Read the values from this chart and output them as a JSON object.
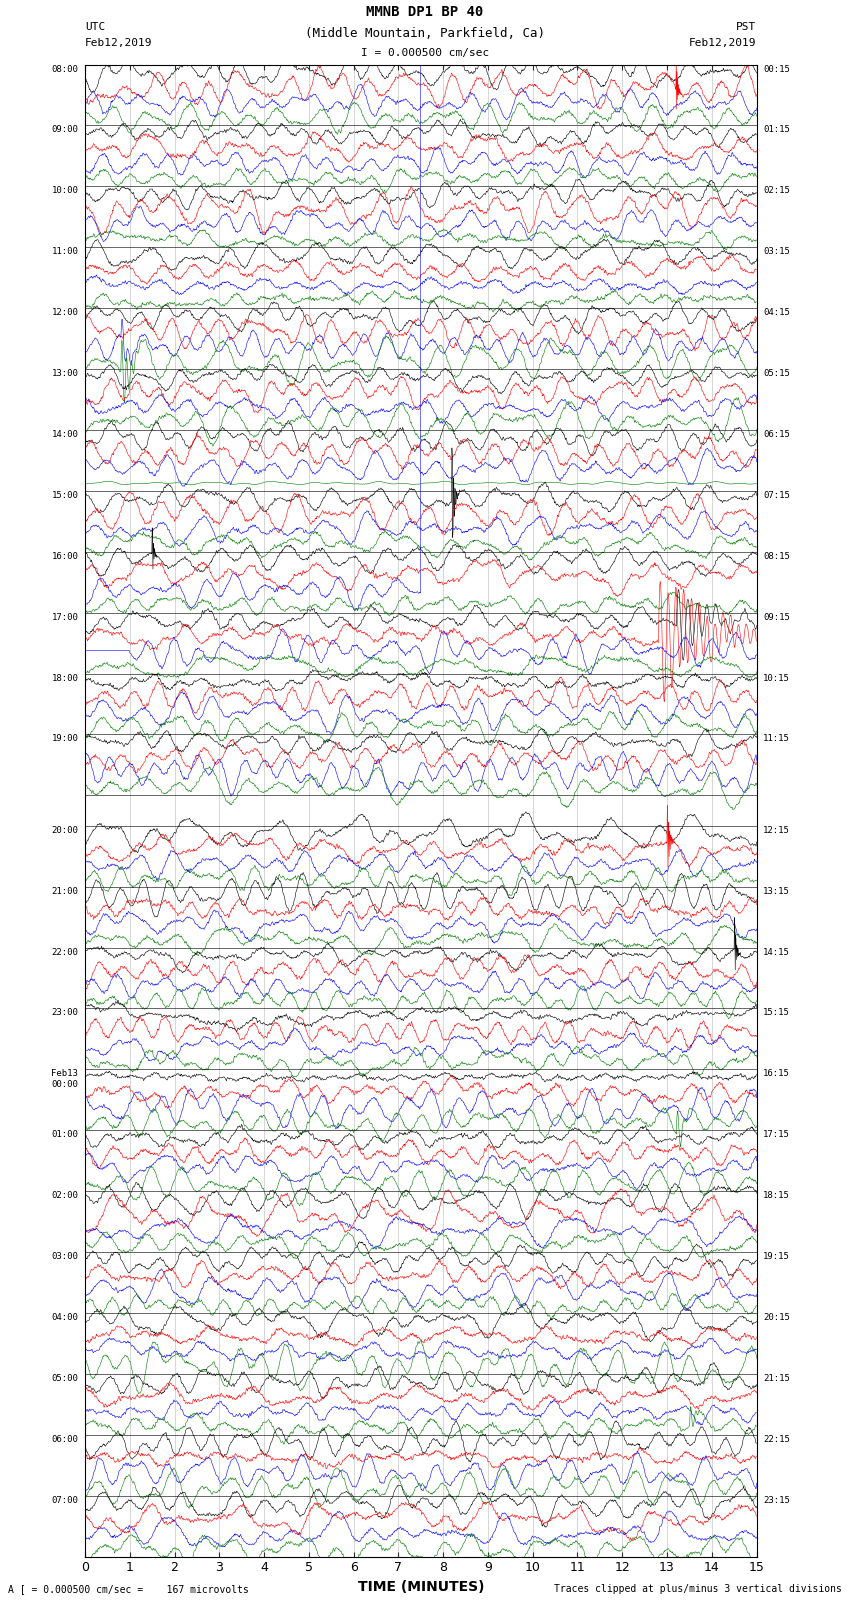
{
  "title_line1": "MMNB DP1 BP 40",
  "title_line2": "(Middle Mountain, Parkfield, Ca)",
  "scale_symbol": "I = 0.000500 cm/sec",
  "left_header_line1": "UTC",
  "left_header_line2": "Feb12,2019",
  "right_header_line1": "PST",
  "right_header_line2": "Feb12,2019",
  "xlabel": "TIME (MINUTES)",
  "bottom_left": "A [ = 0.000500 cm/sec =    167 microvolts",
  "bottom_right": "Traces clipped at plus/minus 3 vertical divisions",
  "xmin": 0,
  "xmax": 15,
  "xticks": [
    0,
    1,
    2,
    3,
    4,
    5,
    6,
    7,
    8,
    9,
    10,
    11,
    12,
    13,
    14,
    15
  ],
  "trace_colors": [
    "black",
    "red",
    "blue",
    "green"
  ],
  "bg_color": "white",
  "rows": [
    {
      "utc": "08:00",
      "pst": "00:15",
      "gap": false
    },
    {
      "utc": "09:00",
      "pst": "01:15",
      "gap": false
    },
    {
      "utc": "10:00",
      "pst": "02:15",
      "gap": false
    },
    {
      "utc": "11:00",
      "pst": "03:15",
      "gap": false
    },
    {
      "utc": "12:00",
      "pst": "04:15",
      "gap": false
    },
    {
      "utc": "13:00",
      "pst": "05:15",
      "gap": false
    },
    {
      "utc": "14:00",
      "pst": "06:15",
      "gap": false
    },
    {
      "utc": "15:00",
      "pst": "07:15",
      "gap": false
    },
    {
      "utc": "16:00",
      "pst": "08:15",
      "gap": false
    },
    {
      "utc": "17:00",
      "pst": "09:15",
      "gap": false
    },
    {
      "utc": "18:00",
      "pst": "10:15",
      "gap": false
    },
    {
      "utc": "19:00",
      "pst": "11:15",
      "gap": false
    },
    {
      "utc": "",
      "pst": "",
      "gap": true
    },
    {
      "utc": "20:00",
      "pst": "12:15",
      "gap": false
    },
    {
      "utc": "21:00",
      "pst": "13:15",
      "gap": false
    },
    {
      "utc": "22:00",
      "pst": "14:15",
      "gap": false
    },
    {
      "utc": "23:00",
      "pst": "15:15",
      "gap": false
    },
    {
      "utc": "Feb13\n00:00",
      "pst": "16:15",
      "gap": false
    },
    {
      "utc": "01:00",
      "pst": "17:15",
      "gap": false
    },
    {
      "utc": "02:00",
      "pst": "18:15",
      "gap": false
    },
    {
      "utc": "03:00",
      "pst": "19:15",
      "gap": false
    },
    {
      "utc": "04:00",
      "pst": "20:15",
      "gap": false
    },
    {
      "utc": "05:00",
      "pst": "21:15",
      "gap": false
    },
    {
      "utc": "06:00",
      "pst": "22:15",
      "gap": false
    },
    {
      "utc": "07:00",
      "pst": "23:15",
      "gap": false
    }
  ]
}
